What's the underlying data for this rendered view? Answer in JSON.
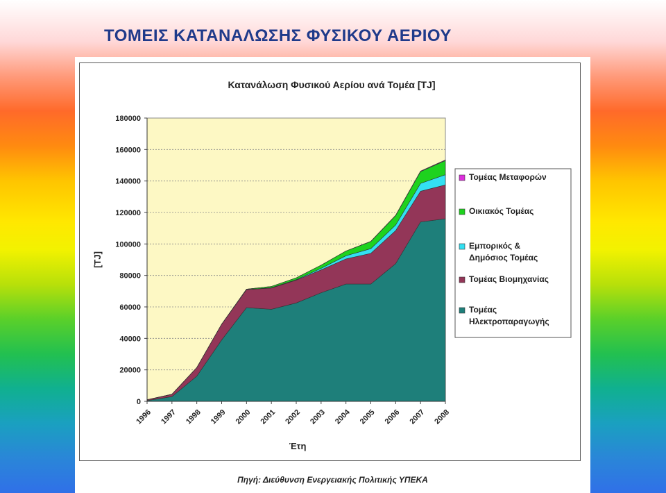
{
  "slide": {
    "title": "ΤΟΜΕΙΣ  ΚΑΤΑΝΑΛΩΣΗΣ  ΦΥΣΙΚΟΥ  ΑΕΡΙΟΥ",
    "source": "Πηγή: Διεύθυνση Ενεργειακής Πολιτικής ΥΠΕΚΑ"
  },
  "chart_data": {
    "type": "area",
    "stacked": true,
    "title": "Κατανάλωση Φυσικού Αερίου ανά Τομέα [TJ]",
    "xlabel": "Έτη",
    "ylabel": "[TJ]",
    "ylim": [
      0,
      180000
    ],
    "yticks": [
      0,
      20000,
      40000,
      60000,
      80000,
      100000,
      120000,
      140000,
      160000,
      180000
    ],
    "categories": [
      "1996",
      "1997",
      "1998",
      "1999",
      "2000",
      "2001",
      "2002",
      "2003",
      "2004",
      "2005",
      "2006",
      "2007",
      "2008"
    ],
    "grid": true,
    "legend_position": "right",
    "plot_background": "#fdf8c4",
    "series": [
      {
        "name": "Τομέας Ηλεκτροπαραγωγής",
        "color": "#1e7f7a",
        "values": [
          500,
          3000,
          16000,
          39000,
          59500,
          58500,
          62500,
          69000,
          74500,
          74500,
          87500,
          114000,
          116000
        ]
      },
      {
        "name": "Τομέας Βιομηχανίας",
        "color": "#933658",
        "values": [
          500,
          1500,
          5500,
          10000,
          11500,
          13500,
          14500,
          14500,
          16000,
          19500,
          21000,
          19500,
          21500
        ]
      },
      {
        "name": "Εμπορικός & Δημόσιος Τομέας",
        "color": "#33e0f2",
        "values": [
          0,
          0,
          0,
          0,
          0,
          200,
          300,
          1000,
          2000,
          3000,
          3500,
          5000,
          6500
        ]
      },
      {
        "name": "Οικιακός Τομέας",
        "color": "#1ed21e",
        "values": [
          0,
          0,
          0,
          0,
          300,
          800,
          1200,
          2000,
          3000,
          4500,
          6000,
          7500,
          9000
        ]
      },
      {
        "name": "Τομέας Μεταφορών",
        "color": "#dd2fdd",
        "values": [
          0,
          0,
          0,
          0,
          0,
          0,
          0,
          0,
          0,
          200,
          300,
          300,
          400
        ]
      }
    ]
  }
}
